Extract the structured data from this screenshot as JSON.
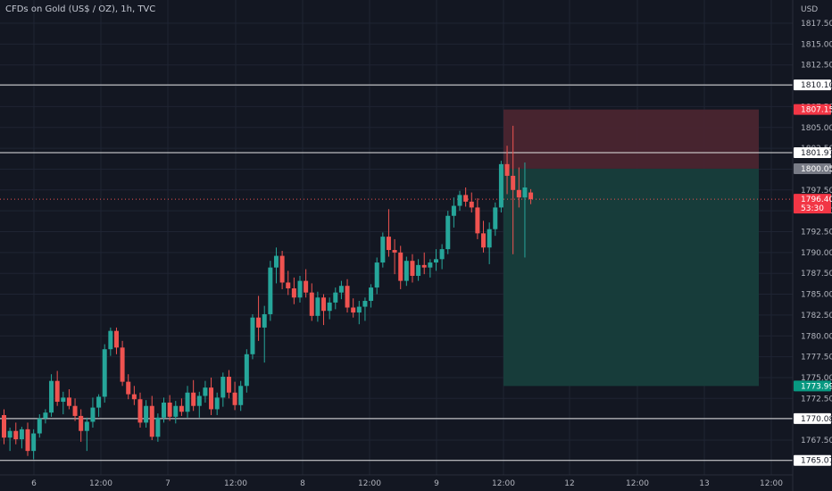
{
  "chart_title": "CFDs on Gold (US$ / OZ), 1h, TVC",
  "currency_label": "USD",
  "colors": {
    "background": "#131722",
    "grid": "#1f2433",
    "axis_text": "#b2b5be",
    "bull": "#26a69a",
    "bear": "#ef5350",
    "horizontal_line": "#e6e6e6",
    "stop_zone": "#4a2530",
    "target_zone": "#173e3c",
    "current_price_line": "#ef5350"
  },
  "chart_data": {
    "type": "candlestick",
    "title": "CFDs on Gold (US$ / OZ), 1h, TVC",
    "ylabel": "USD",
    "ylim": [
      1764.2,
      1819.9
    ],
    "y_ticks": [
      "1767.50",
      "1770.00",
      "1772.50",
      "1775.00",
      "1777.50",
      "1780.00",
      "1782.50",
      "1785.00",
      "1787.50",
      "1790.00",
      "1792.50",
      "1795.00",
      "1797.50",
      "1800.00",
      "1802.50",
      "1805.00",
      "1807.50",
      "1810.00",
      "1812.50",
      "1815.00",
      "1817.50"
    ],
    "x_ticks": [
      "6",
      "12:00",
      "7",
      "12:00",
      "8",
      "12:00",
      "9",
      "12:00",
      "12",
      "12:00",
      "13",
      "12:00"
    ],
    "grid": true,
    "candles": [
      {
        "o": 1770.5,
        "h": 1771.2,
        "l": 1767.0,
        "c": 1767.8
      },
      {
        "o": 1767.8,
        "h": 1769.0,
        "l": 1766.2,
        "c": 1768.6
      },
      {
        "o": 1768.6,
        "h": 1769.6,
        "l": 1767.0,
        "c": 1767.6
      },
      {
        "o": 1767.6,
        "h": 1769.1,
        "l": 1766.5,
        "c": 1768.8
      },
      {
        "o": 1768.8,
        "h": 1769.6,
        "l": 1765.6,
        "c": 1766.2
      },
      {
        "o": 1766.2,
        "h": 1768.8,
        "l": 1765.2,
        "c": 1768.3
      },
      {
        "o": 1768.3,
        "h": 1770.6,
        "l": 1767.8,
        "c": 1770.1
      },
      {
        "o": 1770.1,
        "h": 1771.2,
        "l": 1769.5,
        "c": 1770.8
      },
      {
        "o": 1770.8,
        "h": 1775.4,
        "l": 1770.3,
        "c": 1774.6
      },
      {
        "o": 1774.6,
        "h": 1775.8,
        "l": 1771.6,
        "c": 1772.1
      },
      {
        "o": 1772.1,
        "h": 1773.3,
        "l": 1770.6,
        "c": 1772.6
      },
      {
        "o": 1772.6,
        "h": 1773.6,
        "l": 1771.2,
        "c": 1771.6
      },
      {
        "o": 1771.6,
        "h": 1772.5,
        "l": 1769.8,
        "c": 1770.4
      },
      {
        "o": 1770.4,
        "h": 1771.2,
        "l": 1767.3,
        "c": 1768.6
      },
      {
        "o": 1768.6,
        "h": 1770.2,
        "l": 1766.2,
        "c": 1769.7
      },
      {
        "o": 1769.7,
        "h": 1772.6,
        "l": 1769.0,
        "c": 1771.4
      },
      {
        "o": 1771.4,
        "h": 1773.0,
        "l": 1770.3,
        "c": 1772.7
      },
      {
        "o": 1772.7,
        "h": 1779.0,
        "l": 1772.0,
        "c": 1778.4
      },
      {
        "o": 1778.4,
        "h": 1781.0,
        "l": 1777.6,
        "c": 1780.6
      },
      {
        "o": 1780.6,
        "h": 1781.0,
        "l": 1777.8,
        "c": 1778.6
      },
      {
        "o": 1778.6,
        "h": 1779.4,
        "l": 1774.0,
        "c": 1774.5
      },
      {
        "o": 1774.5,
        "h": 1775.4,
        "l": 1772.4,
        "c": 1773.0
      },
      {
        "o": 1773.0,
        "h": 1774.0,
        "l": 1771.7,
        "c": 1772.4
      },
      {
        "o": 1772.4,
        "h": 1773.2,
        "l": 1769.0,
        "c": 1769.6
      },
      {
        "o": 1769.6,
        "h": 1772.3,
        "l": 1769.0,
        "c": 1771.6
      },
      {
        "o": 1771.6,
        "h": 1772.8,
        "l": 1767.5,
        "c": 1767.9
      },
      {
        "o": 1767.9,
        "h": 1770.7,
        "l": 1767.3,
        "c": 1770.2
      },
      {
        "o": 1770.2,
        "h": 1772.6,
        "l": 1769.6,
        "c": 1772.0
      },
      {
        "o": 1772.0,
        "h": 1772.9,
        "l": 1769.8,
        "c": 1770.3
      },
      {
        "o": 1770.3,
        "h": 1772.2,
        "l": 1769.5,
        "c": 1771.6
      },
      {
        "o": 1771.6,
        "h": 1772.5,
        "l": 1770.4,
        "c": 1770.9
      },
      {
        "o": 1770.9,
        "h": 1774.0,
        "l": 1770.2,
        "c": 1773.2
      },
      {
        "o": 1773.2,
        "h": 1774.7,
        "l": 1771.0,
        "c": 1771.6
      },
      {
        "o": 1771.6,
        "h": 1773.3,
        "l": 1770.2,
        "c": 1772.8
      },
      {
        "o": 1772.8,
        "h": 1774.6,
        "l": 1772.0,
        "c": 1773.8
      },
      {
        "o": 1773.8,
        "h": 1775.0,
        "l": 1770.5,
        "c": 1771.2
      },
      {
        "o": 1771.2,
        "h": 1773.2,
        "l": 1770.5,
        "c": 1772.6
      },
      {
        "o": 1772.6,
        "h": 1775.6,
        "l": 1771.5,
        "c": 1775.1
      },
      {
        "o": 1775.1,
        "h": 1775.9,
        "l": 1772.5,
        "c": 1773.2
      },
      {
        "o": 1773.2,
        "h": 1774.5,
        "l": 1771.1,
        "c": 1771.7
      },
      {
        "o": 1771.7,
        "h": 1774.6,
        "l": 1771.0,
        "c": 1774.0
      },
      {
        "o": 1774.0,
        "h": 1778.4,
        "l": 1773.2,
        "c": 1777.8
      },
      {
        "o": 1777.8,
        "h": 1782.6,
        "l": 1777.2,
        "c": 1782.2
      },
      {
        "o": 1782.2,
        "h": 1784.8,
        "l": 1779.4,
        "c": 1781.0
      },
      {
        "o": 1781.0,
        "h": 1783.6,
        "l": 1776.8,
        "c": 1782.6
      },
      {
        "o": 1782.6,
        "h": 1789.0,
        "l": 1781.8,
        "c": 1788.2
      },
      {
        "o": 1788.2,
        "h": 1790.6,
        "l": 1786.3,
        "c": 1789.6
      },
      {
        "o": 1789.6,
        "h": 1790.2,
        "l": 1785.6,
        "c": 1786.4
      },
      {
        "o": 1786.4,
        "h": 1787.8,
        "l": 1784.9,
        "c": 1785.7
      },
      {
        "o": 1785.7,
        "h": 1787.0,
        "l": 1783.8,
        "c": 1784.6
      },
      {
        "o": 1784.6,
        "h": 1787.2,
        "l": 1784.0,
        "c": 1786.6
      },
      {
        "o": 1786.6,
        "h": 1788.0,
        "l": 1784.6,
        "c": 1785.2
      },
      {
        "o": 1785.2,
        "h": 1786.3,
        "l": 1781.8,
        "c": 1782.4
      },
      {
        "o": 1782.4,
        "h": 1785.3,
        "l": 1781.7,
        "c": 1784.6
      },
      {
        "o": 1784.6,
        "h": 1785.0,
        "l": 1781.3,
        "c": 1783.0
      },
      {
        "o": 1783.0,
        "h": 1784.6,
        "l": 1782.0,
        "c": 1784.0
      },
      {
        "o": 1784.0,
        "h": 1785.8,
        "l": 1783.2,
        "c": 1785.2
      },
      {
        "o": 1785.2,
        "h": 1786.6,
        "l": 1784.4,
        "c": 1786.0
      },
      {
        "o": 1786.0,
        "h": 1786.8,
        "l": 1782.8,
        "c": 1783.4
      },
      {
        "o": 1783.4,
        "h": 1784.5,
        "l": 1782.2,
        "c": 1782.8
      },
      {
        "o": 1782.8,
        "h": 1784.2,
        "l": 1781.4,
        "c": 1783.5
      },
      {
        "o": 1783.5,
        "h": 1784.6,
        "l": 1781.8,
        "c": 1784.2
      },
      {
        "o": 1784.2,
        "h": 1786.2,
        "l": 1783.4,
        "c": 1785.8
      },
      {
        "o": 1785.8,
        "h": 1789.4,
        "l": 1785.0,
        "c": 1788.8
      },
      {
        "o": 1788.8,
        "h": 1792.4,
        "l": 1788.2,
        "c": 1791.9
      },
      {
        "o": 1791.9,
        "h": 1795.2,
        "l": 1789.5,
        "c": 1790.3
      },
      {
        "o": 1790.3,
        "h": 1791.6,
        "l": 1787.4,
        "c": 1790.0
      },
      {
        "o": 1790.0,
        "h": 1790.8,
        "l": 1785.6,
        "c": 1786.6
      },
      {
        "o": 1786.6,
        "h": 1789.5,
        "l": 1786.0,
        "c": 1789.0
      },
      {
        "o": 1789.0,
        "h": 1789.8,
        "l": 1786.4,
        "c": 1787.2
      },
      {
        "o": 1787.2,
        "h": 1789.2,
        "l": 1786.6,
        "c": 1788.5
      },
      {
        "o": 1788.5,
        "h": 1790.0,
        "l": 1787.4,
        "c": 1788.2
      },
      {
        "o": 1788.2,
        "h": 1789.2,
        "l": 1787.0,
        "c": 1788.8
      },
      {
        "o": 1788.8,
        "h": 1790.4,
        "l": 1787.8,
        "c": 1789.2
      },
      {
        "o": 1789.2,
        "h": 1791.0,
        "l": 1788.0,
        "c": 1790.4
      },
      {
        "o": 1790.4,
        "h": 1795.0,
        "l": 1789.8,
        "c": 1794.4
      },
      {
        "o": 1794.4,
        "h": 1796.6,
        "l": 1793.0,
        "c": 1795.6
      },
      {
        "o": 1795.6,
        "h": 1797.4,
        "l": 1795.0,
        "c": 1796.9
      },
      {
        "o": 1796.9,
        "h": 1797.8,
        "l": 1795.5,
        "c": 1796.1
      },
      {
        "o": 1796.1,
        "h": 1797.2,
        "l": 1794.8,
        "c": 1795.4
      },
      {
        "o": 1795.4,
        "h": 1796.5,
        "l": 1791.6,
        "c": 1792.3
      },
      {
        "o": 1792.3,
        "h": 1793.8,
        "l": 1790.0,
        "c": 1790.6
      },
      {
        "o": 1790.6,
        "h": 1793.6,
        "l": 1788.6,
        "c": 1792.8
      },
      {
        "o": 1792.8,
        "h": 1796.0,
        "l": 1792.0,
        "c": 1795.4
      },
      {
        "o": 1795.4,
        "h": 1801.0,
        "l": 1794.8,
        "c": 1800.6
      },
      {
        "o": 1800.6,
        "h": 1802.8,
        "l": 1797.0,
        "c": 1799.2
      },
      {
        "o": 1799.2,
        "h": 1805.2,
        "l": 1789.8,
        "c": 1797.5
      },
      {
        "o": 1797.5,
        "h": 1800.2,
        "l": 1795.4,
        "c": 1796.6
      },
      {
        "o": 1796.6,
        "h": 1800.8,
        "l": 1789.4,
        "c": 1797.8
      },
      {
        "o": 1797.2,
        "h": 1797.6,
        "l": 1795.8,
        "c": 1796.4
      }
    ],
    "horizontal_levels": [
      1810.1,
      1801.97,
      1770.08,
      1765.07
    ],
    "position": {
      "side": "short",
      "stop": 1807.15,
      "entry": 1800.05,
      "target": 1773.99
    },
    "current_price": "1796.40",
    "countdown": "53:30",
    "price_labels": {
      "level_1810": "1810.10",
      "stop": "1807.15",
      "level_1801": "1801.97",
      "entry": "1800.05",
      "current": "1796.40",
      "target": "1773.99",
      "level_1770": "1770.08",
      "level_1765": "1765.07"
    }
  }
}
